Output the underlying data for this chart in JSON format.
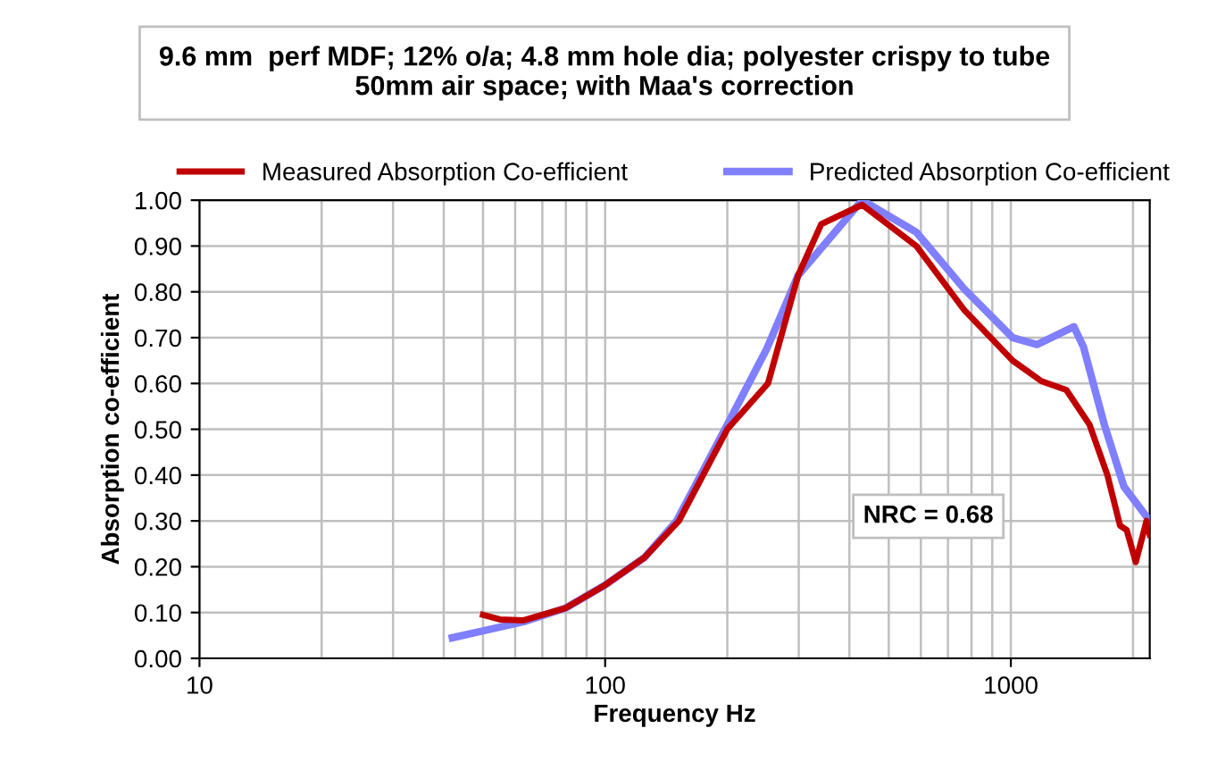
{
  "chart_data": {
    "type": "line",
    "title": "9.6 mm  perf MDF; 12% o/a; 4.8 mm hole dia; polyester crispy to tube\n50mm air space; with Maa's correction",
    "xlabel": "Frequency Hz",
    "ylabel": "Absorption co-efficient",
    "log": "x",
    "xlim": [
      10,
      2200
    ],
    "xticks": [
      10,
      100,
      1000
    ],
    "ylim": [
      0,
      1
    ],
    "yticks": [
      {
        "value": 0,
        "label": "0.00"
      },
      {
        "value": 0.1,
        "label": "0.10"
      },
      {
        "value": 0.2,
        "label": "0.20"
      },
      {
        "value": 0.3,
        "label": "0.30"
      },
      {
        "value": 0.4,
        "label": "0.40"
      },
      {
        "value": 0.5,
        "label": "0.50"
      },
      {
        "value": 0.6,
        "label": "0.60"
      },
      {
        "value": 0.7,
        "label": "0.70"
      },
      {
        "value": 0.8,
        "label": "0.80"
      },
      {
        "value": 0.9,
        "label": "0.90"
      },
      {
        "value": 1,
        "label": "1.00"
      }
    ],
    "grid": true,
    "legend": "top",
    "marker": "none",
    "line_style": "solid",
    "annotations": [
      "NRC = 0.68"
    ],
    "series": [
      {
        "name": "Measured Absorption Co-efficient",
        "color": "#c00000",
        "x": [
          50,
          55,
          63,
          80,
          100,
          125,
          152,
          200,
          252,
          299,
          341,
          430,
          585,
          768,
          1010,
          1190,
          1370,
          1563,
          1730,
          1858,
          1930,
          2032,
          2160,
          2200
        ],
        "values": [
          0.095,
          0.085,
          0.083,
          0.11,
          0.16,
          0.22,
          0.3,
          0.5,
          0.6,
          0.836,
          0.948,
          0.99,
          0.9,
          0.76,
          0.65,
          0.605,
          0.586,
          0.51,
          0.4,
          0.29,
          0.28,
          0.21,
          0.3,
          0.27
        ]
      },
      {
        "name": "Predicted Absorption Co-efficient",
        "color": "#7f7fff",
        "x": [
          42,
          50,
          63,
          80,
          100,
          125,
          150,
          200,
          250,
          299,
          430,
          585,
          768,
          1010,
          1160,
          1430,
          1510,
          1700,
          1900,
          2200
        ],
        "values": [
          0.045,
          0.06,
          0.08,
          0.11,
          0.16,
          0.22,
          0.3,
          0.51,
          0.675,
          0.836,
          1.0,
          0.93,
          0.806,
          0.7,
          0.685,
          0.724,
          0.68,
          0.51,
          0.375,
          0.3
        ]
      }
    ]
  }
}
